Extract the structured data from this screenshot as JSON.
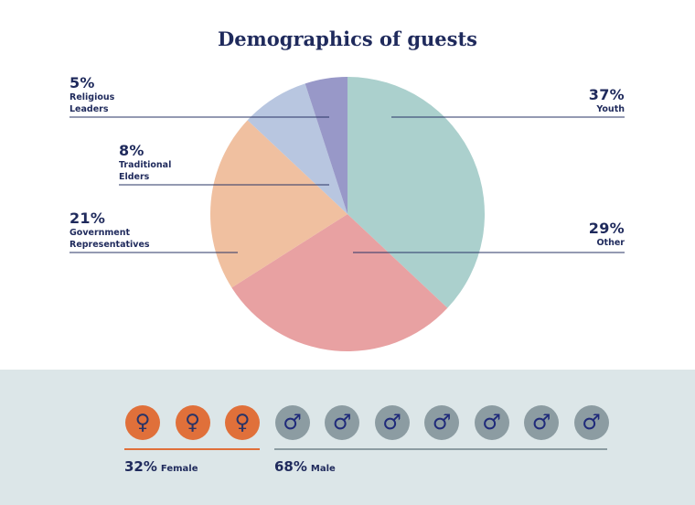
{
  "title": "Demographics of guests",
  "chart_data": {
    "type": "pie",
    "title": "Demographics of guests",
    "slices": [
      {
        "label": "Youth",
        "pct_label": "37%",
        "value": 37,
        "color": "#abd0cd"
      },
      {
        "label": "Other",
        "pct_label": "29%",
        "value": 29,
        "color": "#e8a1a2"
      },
      {
        "label": "Government Representatives",
        "label_lines": [
          "Government",
          "Representatives"
        ],
        "pct_label": "21%",
        "value": 21,
        "color": "#f0c0a0"
      },
      {
        "label": "Traditional Elders",
        "label_lines": [
          "Traditional",
          "Elders"
        ],
        "pct_label": "8%",
        "value": 8,
        "color": "#b8c6e0"
      },
      {
        "label": "Religious Leaders",
        "label_lines": [
          "Religious",
          "Leaders"
        ],
        "pct_label": "5%",
        "value": 5,
        "color": "#9898c8"
      }
    ],
    "start_angle_deg": 0,
    "direction": "clockwise"
  },
  "gender": {
    "female": {
      "pct_label": "32%",
      "label": "Female",
      "icon": "female-symbol-icon",
      "icon_glyph": "♀",
      "icon_count": 3,
      "color": "#e0703a"
    },
    "male": {
      "pct_label": "68%",
      "label": "Male",
      "icon": "male-symbol-icon",
      "icon_glyph": "♂",
      "icon_count": 7,
      "color": "#8c9ca2"
    }
  }
}
